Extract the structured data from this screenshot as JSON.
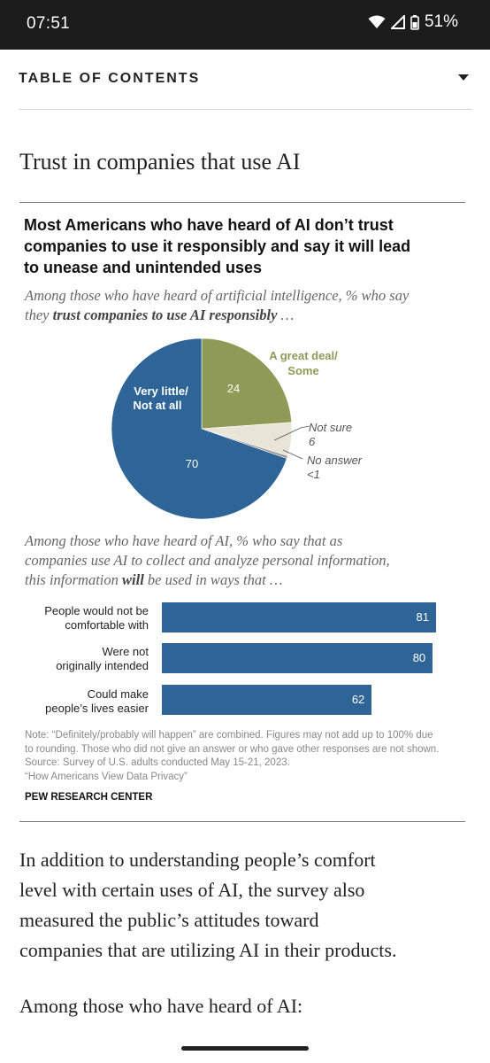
{
  "status_bar": {
    "time": "07:51",
    "battery": "51%",
    "icons": [
      "wifi-icon",
      "cellular-signal-icon",
      "battery-icon"
    ]
  },
  "toc": {
    "label": "TABLE OF CONTENTS",
    "icon": "chevron-down-icon"
  },
  "section": {
    "title": "Trust in companies that use AI"
  },
  "figure": {
    "title_lines": [
      "Most Americans who have heard of AI don’t trust",
      "companies to use it responsibly and say it will lead",
      "to unease and unintended uses"
    ],
    "pie_subtitle": {
      "line1": "Among those who have heard of artificial intelligence, % who say",
      "line2_prefix": "they ",
      "line2_bold": "trust companies to use AI responsibly",
      "line2_suffix": " …"
    },
    "bar_subtitle": {
      "line1": "Among those who have heard of AI, % who say that as",
      "line2": "companies use AI to collect and analyze personal information,",
      "line3_prefix": "this information ",
      "line3_bold": "will",
      "line3_suffix": " be used in ways that …"
    },
    "note_lines": [
      "Note: “Definitely/probably will happen” are combined. Figures may not add up to 100% due",
      "to rounding. Those who did not give an answer or who gave other responses are not shown.",
      "Source: Survey of U.S. adults conducted May 15-21, 2023.",
      "“How Americans View Data Privacy”"
    ],
    "source_org": "PEW RESEARCH CENTER"
  },
  "chart_data": [
    {
      "type": "pie",
      "slices": [
        {
          "label_lines": [
            "A great deal/",
            "Some"
          ],
          "value": 24,
          "value_label": "24",
          "color": "#8e9a56"
        },
        {
          "label_lines": [
            "Not sure"
          ],
          "value": 6,
          "value_label": "6",
          "color": "#e8e4d8"
        },
        {
          "label_lines": [
            "No answer"
          ],
          "value": 0.5,
          "value_label": "<1",
          "color": "#9a9a9a"
        },
        {
          "label_lines": [
            "Very little/",
            "Not at all"
          ],
          "value": 70,
          "value_label": "70",
          "color": "#2f6497"
        }
      ]
    },
    {
      "type": "bar",
      "orientation": "horizontal",
      "categories": [
        [
          "People would not be",
          "comfortable with"
        ],
        [
          "Were not",
          "originally intended"
        ],
        [
          "Could make",
          "people’s lives easier"
        ]
      ],
      "values": [
        81,
        80,
        62
      ],
      "color": "#2f6497"
    }
  ],
  "body": {
    "paragraph_lines": [
      "In addition to understanding people’s comfort",
      "level with certain uses of AI, the survey also",
      "measured the public’s attitudes toward",
      "companies that are utilizing AI in their products."
    ],
    "paragraph2": "Among those who have heard of AI:"
  }
}
